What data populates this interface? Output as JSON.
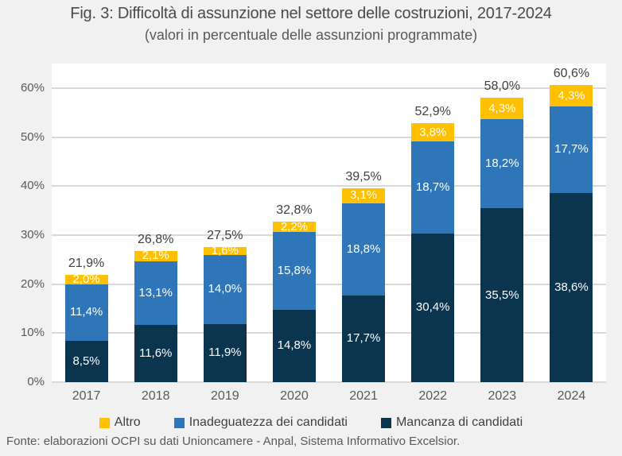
{
  "header": {
    "title": "Fig. 3: Difficoltà di assunzione nel settore delle costruzioni, 2017-2024",
    "subtitle": "(valori in percentuale delle assunzioni programmate)"
  },
  "footer": {
    "source": "Fonte: elaborazioni OCPI su dati Unioncamere - Anpal, Sistema Informativo Excelsior."
  },
  "colors": {
    "background": "#f1f1f1",
    "plot_background": "#ffffff",
    "gridline": "#d9d9d9",
    "title_text": "#4a4a4a",
    "axis_text": "#595959",
    "total_label_text": "#404040",
    "segment_label_text": "#ffffff",
    "altro": "#FFC000",
    "inadeguatezza": "#2F76B8",
    "mancanza": "#0B344E"
  },
  "legend": {
    "items": [
      {
        "label": "Altro",
        "color": "#FFC000"
      },
      {
        "label": "Inadeguatezza dei candidati",
        "color": "#2F76B8"
      },
      {
        "label": "Mancanza di candidati",
        "color": "#0B344E"
      }
    ]
  },
  "chart_data": {
    "type": "bar",
    "stacked": true,
    "title": "Fig. 3: Difficoltà di assunzione nel settore delle costruzioni, 2017-2024",
    "subtitle": "(valori in percentuale delle assunzioni programmate)",
    "categories": [
      "2017",
      "2018",
      "2019",
      "2020",
      "2021",
      "2022",
      "2023",
      "2024"
    ],
    "series": [
      {
        "name": "Mancanza di candidati",
        "color": "#0B344E",
        "values": [
          8.5,
          11.6,
          11.9,
          14.8,
          17.7,
          30.4,
          35.5,
          38.6
        ],
        "labels": [
          "8,5%",
          "11,6%",
          "11,9%",
          "14,8%",
          "17,7%",
          "30,4%",
          "35,5%",
          "38,6%"
        ]
      },
      {
        "name": "Inadeguatezza dei candidati",
        "color": "#2F76B8",
        "values": [
          11.4,
          13.1,
          14.0,
          15.8,
          18.8,
          18.7,
          18.2,
          17.7
        ],
        "labels": [
          "11,4%",
          "13,1%",
          "14,0%",
          "15,8%",
          "18,8%",
          "18,7%",
          "18,2%",
          "17,7%"
        ]
      },
      {
        "name": "Altro",
        "color": "#FFC000",
        "values": [
          2.0,
          2.1,
          1.6,
          2.2,
          3.1,
          3.8,
          4.3,
          4.3
        ],
        "labels": [
          "2,0%",
          "2,1%",
          "1,6%",
          "2,2%",
          "3,1%",
          "3,8%",
          "4,3%",
          "4,3%"
        ]
      }
    ],
    "totals": [
      21.9,
      26.8,
      27.5,
      32.8,
      39.5,
      52.9,
      58.0,
      60.6
    ],
    "total_labels": [
      "21,9%",
      "26,8%",
      "27,5%",
      "32,8%",
      "39,5%",
      "52,9%",
      "58,0%",
      "60,6%"
    ],
    "xlabel": "",
    "ylabel": "",
    "ylim": [
      0,
      65
    ],
    "yticks": {
      "values": [
        0,
        10,
        20,
        30,
        40,
        50,
        60
      ],
      "labels": [
        "0%",
        "10%",
        "20%",
        "30%",
        "40%",
        "50%",
        "60%"
      ]
    },
    "grid": "horizontal",
    "legend_position": "bottom"
  }
}
